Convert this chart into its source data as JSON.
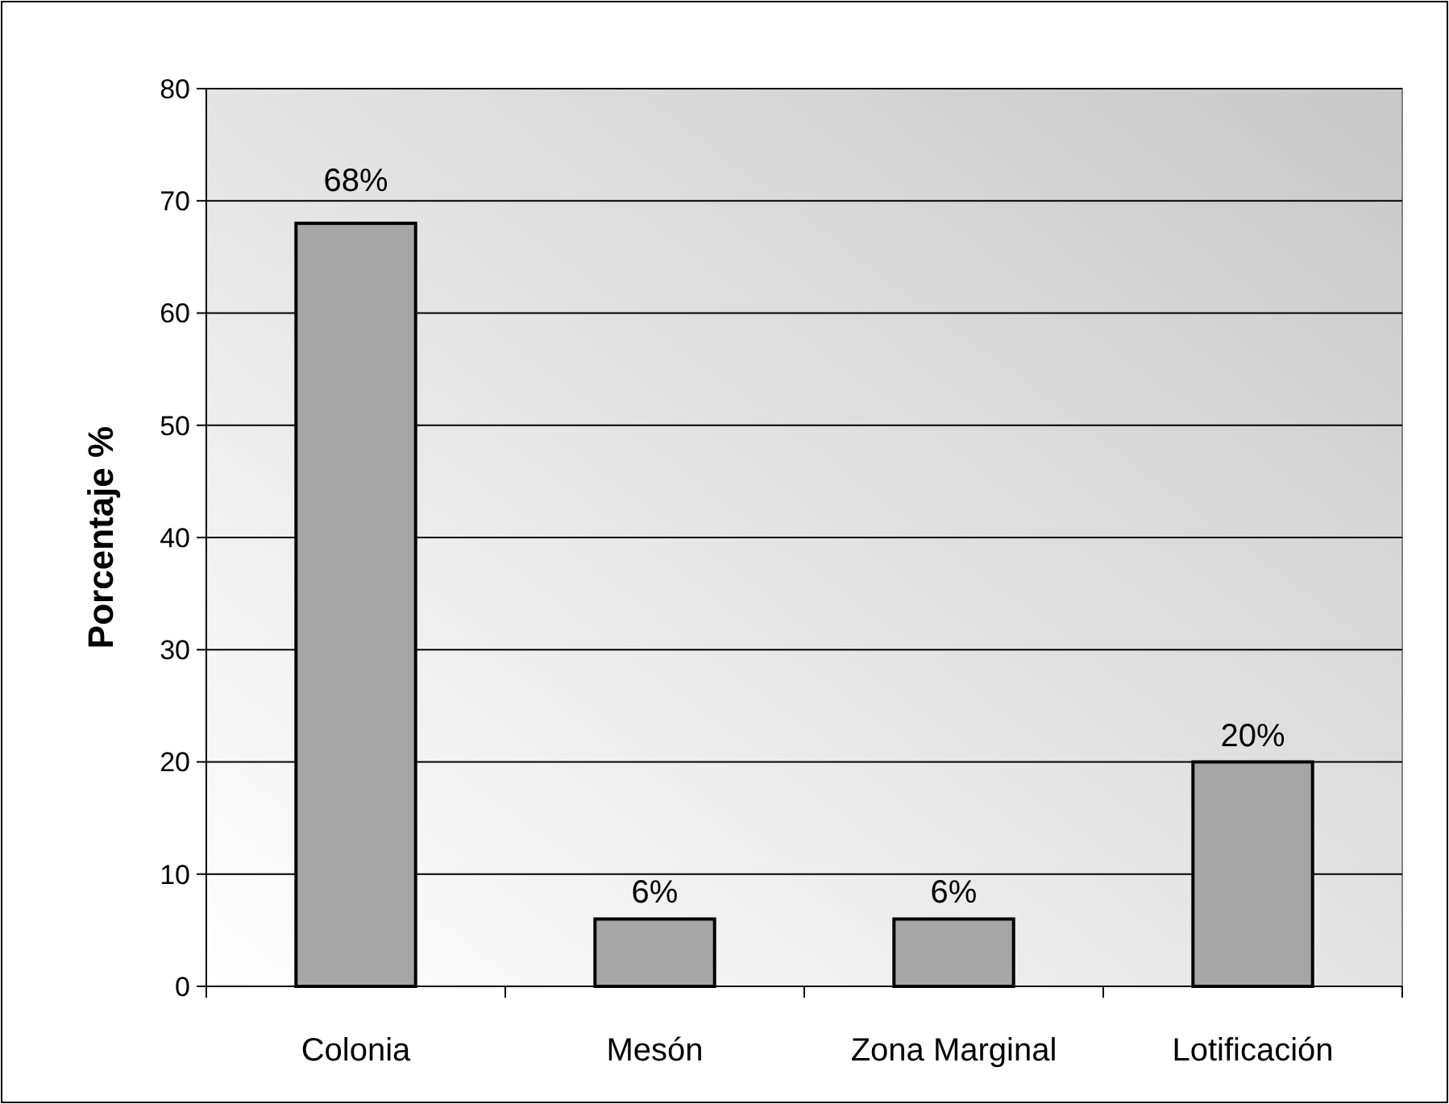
{
  "chart_data": {
    "type": "bar",
    "ylabel": "Porcentaje %",
    "categories": [
      "Colonia",
      "Mesón",
      "Zona Marginal",
      "Lotificación"
    ],
    "values": [
      68,
      6,
      6,
      20
    ],
    "value_labels": [
      "68%",
      "6%",
      "6%",
      "20%"
    ],
    "color": "#a6a6a6",
    "ylim": [
      0,
      80
    ],
    "yticks": [
      0,
      10,
      20,
      30,
      40,
      50,
      60,
      70,
      80
    ],
    "grid": "y"
  }
}
